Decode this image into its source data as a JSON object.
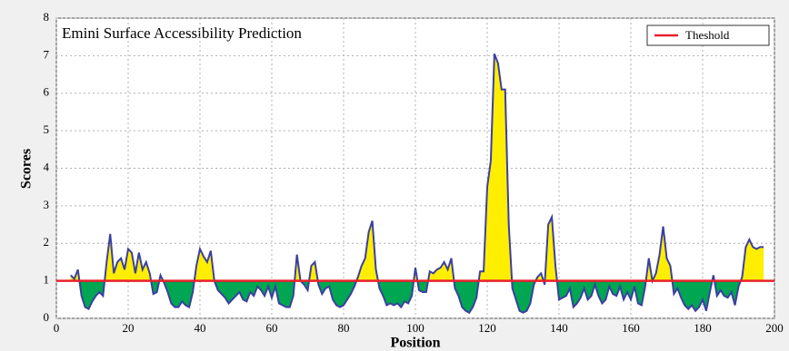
{
  "chart_data": {
    "type": "area",
    "title": "Emini Surface Accessibility Prediction",
    "x_label": "Position",
    "y_label": "Scores",
    "xlim": [
      0,
      200
    ],
    "xticks": [
      0,
      20,
      40,
      60,
      80,
      100,
      120,
      140,
      160,
      180,
      200
    ],
    "ylim": [
      0,
      8
    ],
    "yticks": [
      0,
      1,
      2,
      3,
      4,
      5,
      6,
      7,
      8
    ],
    "grid": true,
    "legend_position": "upper right",
    "threshold": {
      "name": "Theshold",
      "value": 1,
      "color": "#e8202a"
    },
    "above_color": "#ffee00",
    "below_color": "#00a651",
    "x": [
      4,
      5,
      6,
      7,
      8,
      9,
      10,
      11,
      12,
      13,
      14,
      15,
      16,
      17,
      18,
      19,
      20,
      21,
      22,
      23,
      24,
      25,
      26,
      27,
      28,
      29,
      30,
      31,
      32,
      33,
      34,
      35,
      36,
      37,
      38,
      39,
      40,
      41,
      42,
      43,
      44,
      45,
      46,
      47,
      48,
      49,
      50,
      51,
      52,
      53,
      54,
      55,
      56,
      57,
      58,
      59,
      60,
      61,
      62,
      63,
      64,
      65,
      66,
      67,
      68,
      69,
      70,
      71,
      72,
      73,
      74,
      75,
      76,
      77,
      78,
      79,
      80,
      81,
      82,
      83,
      84,
      85,
      86,
      87,
      88,
      89,
      90,
      91,
      92,
      93,
      94,
      95,
      96,
      97,
      98,
      99,
      100,
      101,
      102,
      103,
      104,
      105,
      106,
      107,
      108,
      109,
      110,
      111,
      112,
      113,
      114,
      115,
      116,
      117,
      118,
      119,
      120,
      121,
      122,
      123,
      124,
      125,
      126,
      127,
      128,
      129,
      130,
      131,
      132,
      133,
      134,
      135,
      136,
      137,
      138,
      139,
      140,
      141,
      142,
      143,
      144,
      145,
      146,
      147,
      148,
      149,
      150,
      151,
      152,
      153,
      154,
      155,
      156,
      157,
      158,
      159,
      160,
      161,
      162,
      163,
      164,
      165,
      166,
      167,
      168,
      169,
      170,
      171,
      172,
      173,
      174,
      175,
      176,
      177,
      178,
      179,
      180,
      181,
      182,
      183,
      184,
      185,
      186,
      187,
      188,
      189,
      190,
      191,
      192,
      193,
      194,
      195,
      196,
      197
    ],
    "series": [
      {
        "color": "#3b3fa0",
        "values": [
          1.15,
          1.05,
          1.3,
          0.6,
          0.3,
          0.25,
          0.45,
          0.6,
          0.7,
          0.6,
          1.5,
          2.25,
          1.2,
          1.5,
          1.6,
          1.3,
          1.85,
          1.75,
          1.2,
          1.75,
          1.3,
          1.5,
          1.2,
          0.65,
          0.7,
          1.15,
          0.95,
          0.7,
          0.4,
          0.3,
          0.3,
          0.45,
          0.35,
          0.3,
          0.7,
          1.4,
          1.85,
          1.65,
          1.5,
          1.8,
          1.0,
          0.75,
          0.65,
          0.55,
          0.4,
          0.5,
          0.6,
          0.7,
          0.5,
          0.45,
          0.7,
          0.6,
          0.85,
          0.75,
          0.6,
          0.85,
          0.55,
          0.85,
          0.4,
          0.35,
          0.3,
          0.3,
          0.6,
          1.7,
          1.0,
          0.9,
          0.75,
          1.4,
          1.5,
          0.9,
          0.65,
          0.8,
          0.85,
          0.5,
          0.35,
          0.3,
          0.35,
          0.5,
          0.65,
          0.85,
          1.1,
          1.4,
          1.6,
          2.3,
          2.6,
          1.3,
          0.8,
          0.6,
          0.35,
          0.4,
          0.35,
          0.4,
          0.3,
          0.45,
          0.4,
          0.6,
          1.35,
          0.75,
          0.7,
          0.7,
          1.25,
          1.2,
          1.3,
          1.35,
          1.5,
          1.3,
          1.6,
          0.8,
          0.6,
          0.3,
          0.2,
          0.15,
          0.3,
          0.55,
          1.25,
          1.25,
          3.5,
          4.2,
          7.05,
          6.8,
          6.1,
          6.1,
          2.5,
          0.8,
          0.5,
          0.2,
          0.15,
          0.2,
          0.4,
          0.9,
          1.1,
          1.2,
          0.9,
          2.5,
          2.7,
          1.4,
          0.5,
          0.55,
          0.6,
          0.8,
          0.3,
          0.4,
          0.55,
          0.8,
          0.5,
          0.6,
          0.9,
          0.6,
          0.4,
          0.5,
          0.85,
          0.65,
          0.6,
          0.85,
          0.5,
          0.7,
          0.5,
          0.85,
          0.4,
          0.35,
          0.85,
          1.6,
          1.0,
          1.2,
          1.7,
          2.45,
          1.6,
          1.4,
          0.65,
          0.8,
          0.55,
          0.35,
          0.25,
          0.35,
          0.2,
          0.3,
          0.5,
          0.2,
          0.7,
          1.15,
          0.6,
          0.75,
          0.6,
          0.55,
          0.7,
          0.35,
          0.85,
          1.1,
          1.9,
          2.1,
          1.9,
          1.85,
          1.9,
          1.9
        ]
      }
    ]
  }
}
